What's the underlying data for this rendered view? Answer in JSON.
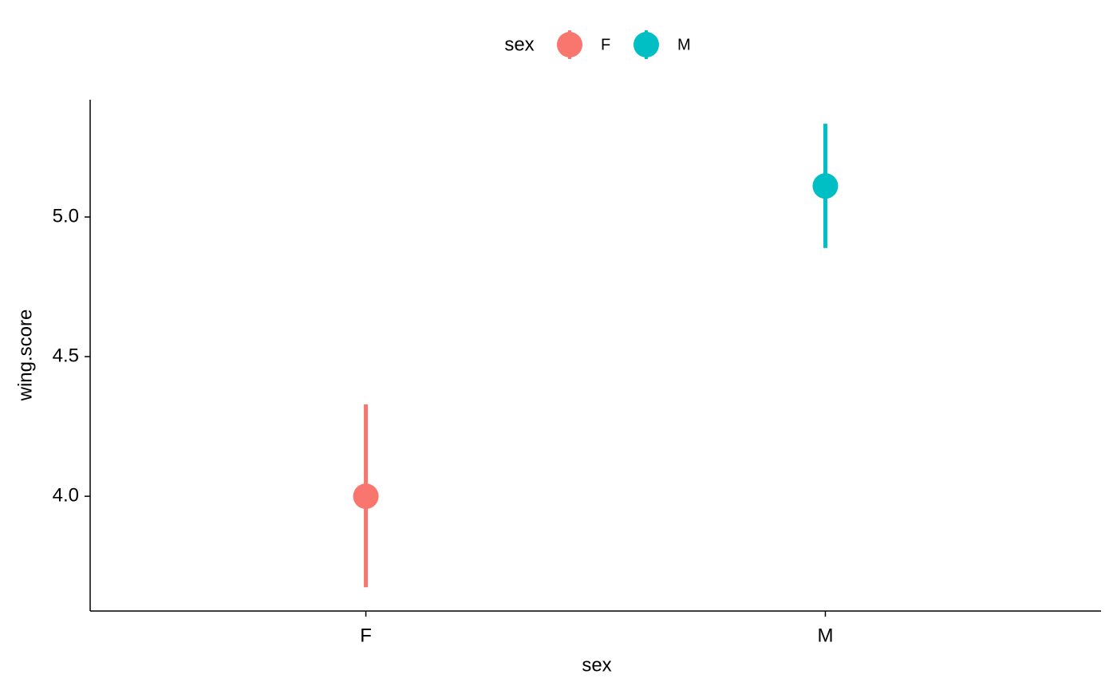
{
  "chart_data": {
    "type": "pointrange",
    "x_label": "sex",
    "y_label": "wing.score",
    "legend_title": "sex",
    "legend_position": "top",
    "categories": [
      "F",
      "M"
    ],
    "series": [
      {
        "name": "F",
        "color": "#F8766D",
        "values": [
          4.0,
          null
        ],
        "lower": [
          3.674,
          null
        ],
        "upper": [
          4.329,
          null
        ]
      },
      {
        "name": "M",
        "color": "#00BFC4",
        "values": [
          null,
          5.111
        ],
        "lower": [
          null,
          4.889
        ],
        "upper": [
          null,
          5.334
        ]
      }
    ],
    "ylim": [
      3.589,
      5.42
    ],
    "yticks": [
      {
        "value": 4.0,
        "label": "4.0"
      },
      4.5,
      {
        "value": 5.0,
        "label": "5.0"
      }
    ],
    "grid": false
  }
}
